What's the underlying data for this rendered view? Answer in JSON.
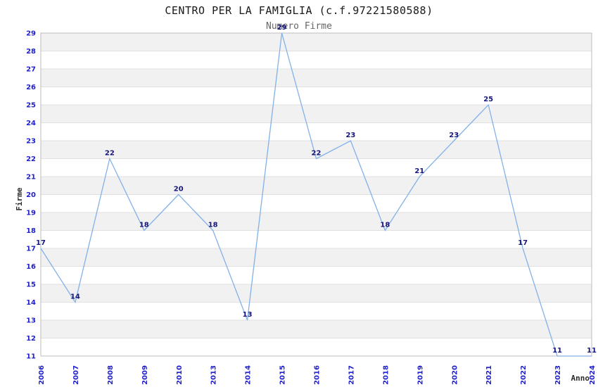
{
  "chart_data": {
    "type": "line",
    "title": "CENTRO PER LA FAMIGLIA (c.f.97221580588)",
    "subtitle": "Numero Firme",
    "xlabel": "Anno",
    "ylabel": "Firme",
    "categories": [
      "2006",
      "2007",
      "2008",
      "2009",
      "2010",
      "2013",
      "2014",
      "2015",
      "2016",
      "2017",
      "2018",
      "2019",
      "2020",
      "2021",
      "2022",
      "2023",
      "2024"
    ],
    "values": [
      17,
      14,
      22,
      18,
      20,
      18,
      13,
      29,
      22,
      23,
      18,
      21,
      23,
      25,
      17,
      11,
      11
    ],
    "ylim": [
      11,
      29
    ],
    "y_tick_step": 1,
    "grid": "horizontal-alternating-bands",
    "legend": "none",
    "colors": {
      "line": "#82b1e8",
      "tick_labels": "#2222cc",
      "data_labels": "#15157d",
      "band_gray": "#f1f1f2",
      "band_white": "#ffffff",
      "gridline": "#e0e0e0",
      "plot_border": "#bdbdbd",
      "title": "#1a1a1a",
      "subtitle": "#666666",
      "axis_title": "#2b2b2b",
      "background": "#ffffff"
    }
  }
}
